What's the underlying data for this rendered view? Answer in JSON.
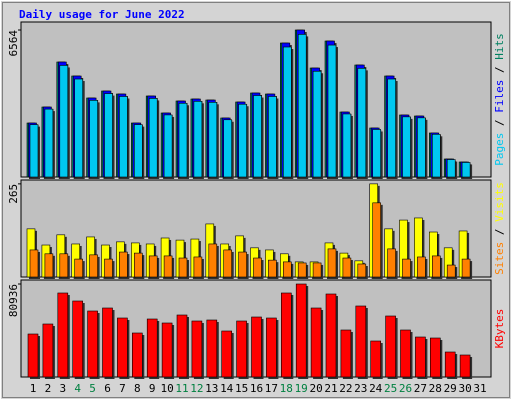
{
  "chart_data": [
    {
      "type": "bar",
      "title": "Daily usage for June 2022",
      "series": [
        {
          "name": "Hits",
          "color": "#008060",
          "values": [
            2411,
            3126,
            5135,
            4510,
            3528,
            3840,
            3706,
            2411,
            3617,
            2858,
            3394,
            3483,
            3438,
            2635,
            3349,
            3751,
            3706,
            5983,
            6564,
            4867,
            6073,
            2902,
            5001,
            2188,
            4510,
            2769,
            2724,
            1965,
            804,
            670,
            0
          ]
        },
        {
          "name": "Files",
          "color": "#0000ff",
          "values": [
            2411,
            3126,
            5135,
            4510,
            3528,
            3840,
            3706,
            2411,
            3617,
            2858,
            3394,
            3483,
            3438,
            2635,
            3349,
            3751,
            3706,
            5983,
            6564,
            4867,
            6073,
            2902,
            5001,
            2188,
            4510,
            2769,
            2724,
            1965,
            804,
            670,
            0
          ]
        },
        {
          "name": "Pages",
          "color": "#00c8f0",
          "values": [
            2339,
            3032,
            4981,
            4375,
            3422,
            3725,
            3595,
            2339,
            3508,
            2772,
            3292,
            3379,
            3335,
            2556,
            3249,
            3638,
            3595,
            5804,
            6367,
            4721,
            5891,
            2815,
            4851,
            2122,
            4375,
            2686,
            2642,
            1906,
            780,
            650,
            0
          ]
        }
      ],
      "ylim": [
        0,
        6921
      ],
      "yticks": [
        6564
      ],
      "legend_separator": " / "
    },
    {
      "type": "bar",
      "series": [
        {
          "name": "Visits",
          "color": "#ffff00",
          "values": [
            137,
            91,
            120,
            94,
            114,
            91,
            100,
            97,
            94,
            111,
            105,
            108,
            151,
            94,
            117,
            83,
            77,
            66,
            43,
            43,
            97,
            68,
            46,
            265,
            137,
            162,
            168,
            128,
            83,
            131,
            0
          ]
        },
        {
          "name": "Sites",
          "color": "#ff8000",
          "values": [
            77,
            66,
            66,
            51,
            63,
            51,
            71,
            68,
            60,
            60,
            54,
            57,
            94,
            77,
            71,
            54,
            48,
            43,
            40,
            40,
            80,
            54,
            37,
            211,
            80,
            51,
            57,
            60,
            34,
            51,
            0
          ]
        }
      ],
      "ylim": [
        0,
        276
      ],
      "yticks": [
        265
      ],
      "legend_separator": " / "
    },
    {
      "type": "bar",
      "series": [
        {
          "name": "KBytes",
          "color": "#ff0000",
          "values": [
            37422,
            46126,
            73106,
            66143,
            57440,
            60051,
            51348,
            38294,
            50478,
            46997,
            53959,
            48737,
            49607,
            40034,
            48737,
            52217,
            51348,
            73106,
            80936,
            60051,
            72236,
            40904,
            61791,
            31331,
            53088,
            40904,
            34812,
            33942,
            21757,
            19147,
            0
          ]
        }
      ],
      "ylim": [
        0,
        84417
      ],
      "yticks": [
        80936
      ],
      "categories": [
        "1",
        "2",
        "3",
        "4",
        "5",
        "6",
        "7",
        "8",
        "9",
        "10",
        "11",
        "12",
        "13",
        "14",
        "15",
        "16",
        "17",
        "18",
        "19",
        "20",
        "21",
        "22",
        "23",
        "24",
        "25",
        "26",
        "27",
        "28",
        "29",
        "30",
        "31"
      ],
      "category_colors": [
        "#000000",
        "#000000",
        "#000000",
        "#008040",
        "#008040",
        "#000000",
        "#000000",
        "#000000",
        "#000000",
        "#000000",
        "#008040",
        "#008040",
        "#000000",
        "#000000",
        "#000000",
        "#000000",
        "#000000",
        "#008040",
        "#008040",
        "#000000",
        "#000000",
        "#000000",
        "#000000",
        "#000000",
        "#008040",
        "#008040",
        "#000000",
        "#000000",
        "#000000",
        "#000000",
        "#000000"
      ]
    }
  ]
}
